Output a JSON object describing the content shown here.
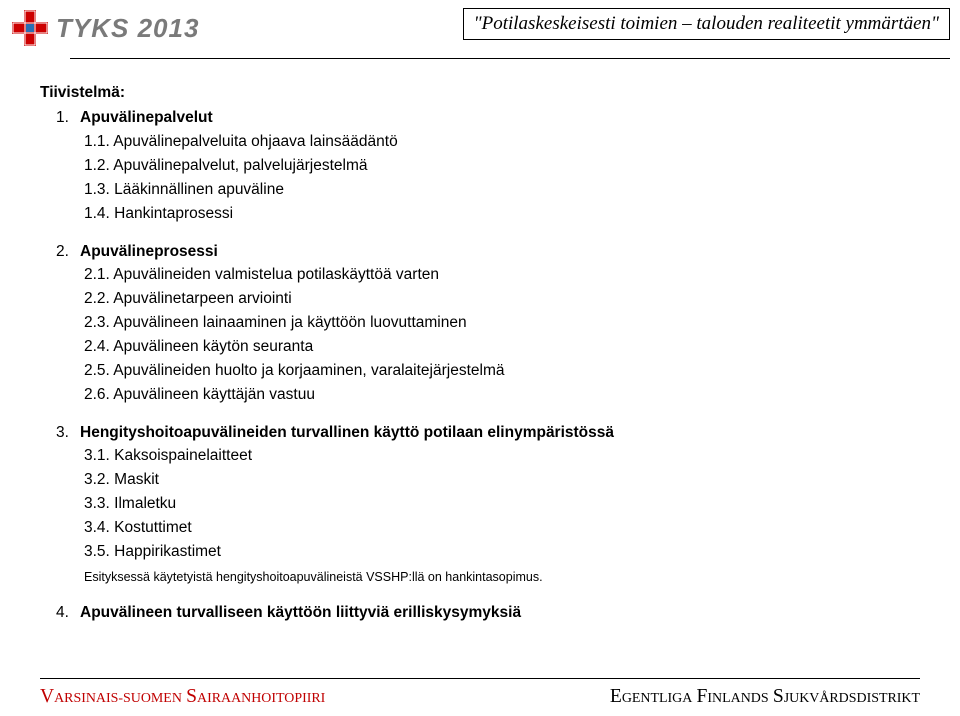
{
  "header": {
    "logo_text": "TYKS 2013",
    "tagline": "\"Potilaskeskeisesti toimien – talouden realiteetit ymmärtäen\"",
    "logo_colors": {
      "cross": "#cc0000",
      "center": "#2a6fb5",
      "outline": "#ffffff"
    }
  },
  "title": "Tiivistelmä:",
  "sections": [
    {
      "num": "1.",
      "label": "Apuvälinepalvelut",
      "bold": true,
      "items": [
        {
          "num": "1.1.",
          "label": "Apuvälinepalveluita ohjaava lainsäädäntö"
        },
        {
          "num": "1.2.",
          "label": "Apuvälinepalvelut, palvelujärjestelmä"
        },
        {
          "num": "1.3.",
          "label": "Lääkinnällinen apuväline"
        },
        {
          "num": "1.4.",
          "label": "Hankintaprosessi"
        }
      ]
    },
    {
      "num": "2.",
      "label": "Apuvälineprosessi",
      "bold": true,
      "items": [
        {
          "num": "2.1.",
          "label": "Apuvälineiden valmistelua potilaskäyttöä varten"
        },
        {
          "num": "2.2.",
          "label": "Apuvälinetarpeen arviointi"
        },
        {
          "num": "2.3.",
          "label": "Apuvälineen lainaaminen ja käyttöön luovuttaminen"
        },
        {
          "num": "2.4.",
          "label": "Apuvälineen käytön seuranta"
        },
        {
          "num": "2.5.",
          "label": "Apuvälineiden huolto ja korjaaminen, varalaitejärjestelmä"
        },
        {
          "num": "2.6.",
          "label": "Apuvälineen käyttäjän vastuu"
        }
      ]
    },
    {
      "num": "3.",
      "label": "Hengityshoitoapuvälineiden turvallinen käyttö potilaan elinympäristössä",
      "bold": true,
      "items": [
        {
          "num": "3.1.",
          "label": "Kaksoispainelaitteet"
        },
        {
          "num": "3.2.",
          "label": "Maskit"
        },
        {
          "num": "3.3.",
          "label": "Ilmaletku"
        },
        {
          "num": "3.4.",
          "label": "Kostuttimet"
        },
        {
          "num": "3.5.",
          "label": "Happirikastimet"
        }
      ],
      "note": "Esityksessä käytetyistä hengityshoitoapuvälineistä VSSHP:llä on hankintasopimus."
    },
    {
      "num": "4.",
      "label": "Apuvälineen turvalliseen käyttöön liittyviä erilliskysymyksiä",
      "bold": true,
      "items": []
    }
  ],
  "footer": {
    "left": "Varsinais-Suomen sairaanhoitopiiri",
    "right": "Egentliga Finlands sjukvårdsdistrikt",
    "left_color": "#c00000",
    "right_color": "#000000"
  }
}
